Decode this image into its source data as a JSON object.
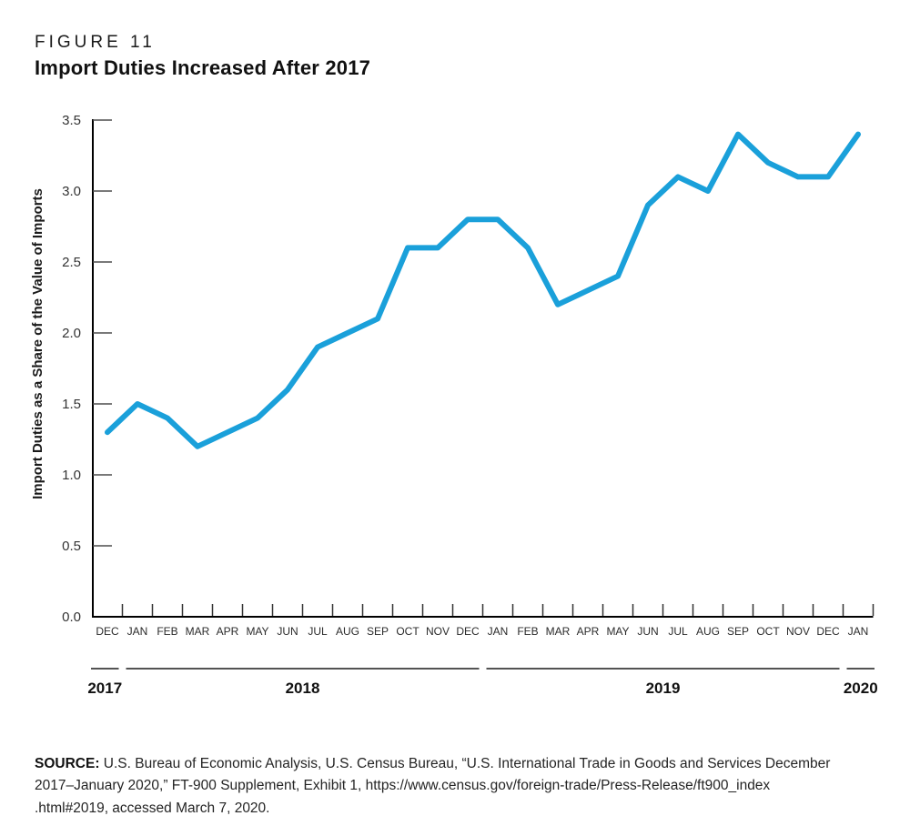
{
  "header": {
    "figure_label": "FIGURE 11",
    "title": "Import Duties Increased After 2017"
  },
  "chart_data": {
    "type": "line",
    "title": "Import Duties Increased After 2017",
    "xlabel": "",
    "ylabel": "Import Duties as a Share of the Value of Imports",
    "categories": [
      "DEC",
      "JAN",
      "FEB",
      "MAR",
      "APR",
      "MAY",
      "JUN",
      "JUL",
      "AUG",
      "SEP",
      "OCT",
      "NOV",
      "DEC",
      "JAN",
      "FEB",
      "MAR",
      "APR",
      "MAY",
      "JUN",
      "JUL",
      "AUG",
      "SEP",
      "OCT",
      "NOV",
      "DEC",
      "JAN"
    ],
    "values": [
      1.3,
      1.5,
      1.4,
      1.2,
      1.3,
      1.4,
      1.6,
      1.9,
      2.0,
      2.1,
      2.6,
      2.6,
      2.8,
      2.8,
      2.6,
      2.2,
      2.3,
      2.4,
      2.9,
      3.1,
      3.0,
      3.4,
      3.2,
      3.1,
      3.1,
      3.4
    ],
    "year_groups": [
      {
        "label": "2017",
        "first_index": 0,
        "last_index": 0
      },
      {
        "label": "2018",
        "first_index": 1,
        "last_index": 12
      },
      {
        "label": "2019",
        "first_index": 13,
        "last_index": 24
      },
      {
        "label": "2020",
        "first_index": 25,
        "last_index": 25
      }
    ],
    "y_tick_labels": [
      "0.0",
      "0.5",
      "1.0",
      "1.5",
      "2.0",
      "2.5",
      "3.0",
      "3.5"
    ],
    "ylim": [
      0,
      3.5
    ],
    "grid": false,
    "legend": null,
    "line_color": "#1AA0DA",
    "axis_color": "#000000",
    "tick_color": "#4d4d4d",
    "label_color": "#2b2b2b"
  },
  "source": {
    "label": "SOURCE:",
    "lines": [
      "U.S. Bureau of Economic Analysis, U.S. Census Bureau, “U.S. International Trade in Goods and Services December",
      "2017–January 2020,” FT-900 Supplement, Exhibit 1, https://www.census.gov/foreign-trade/Press-Release/ft900_index",
      ".html#2019, accessed March 7, 2020."
    ]
  }
}
